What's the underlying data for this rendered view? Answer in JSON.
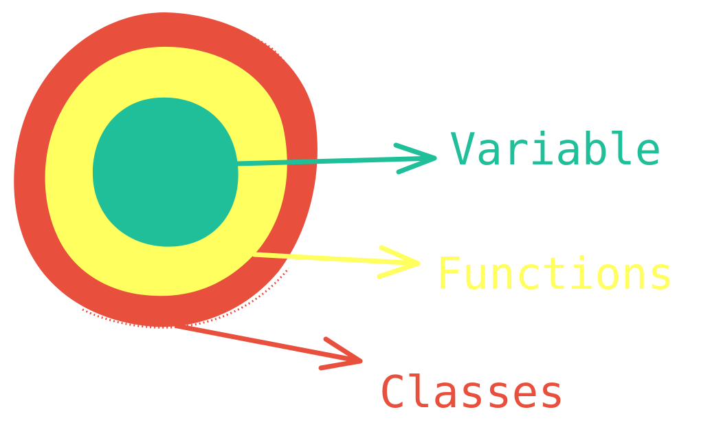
{
  "colors": {
    "outer": "#e84f3d",
    "middle": "#ffff5f",
    "inner": "#1fbf9a"
  },
  "layers": [
    {
      "name": "Variable",
      "color": "#1fbf9a"
    },
    {
      "name": "Functions",
      "color": "#ffff5f"
    },
    {
      "name": "Classes",
      "color": "#e84f3d"
    }
  ]
}
